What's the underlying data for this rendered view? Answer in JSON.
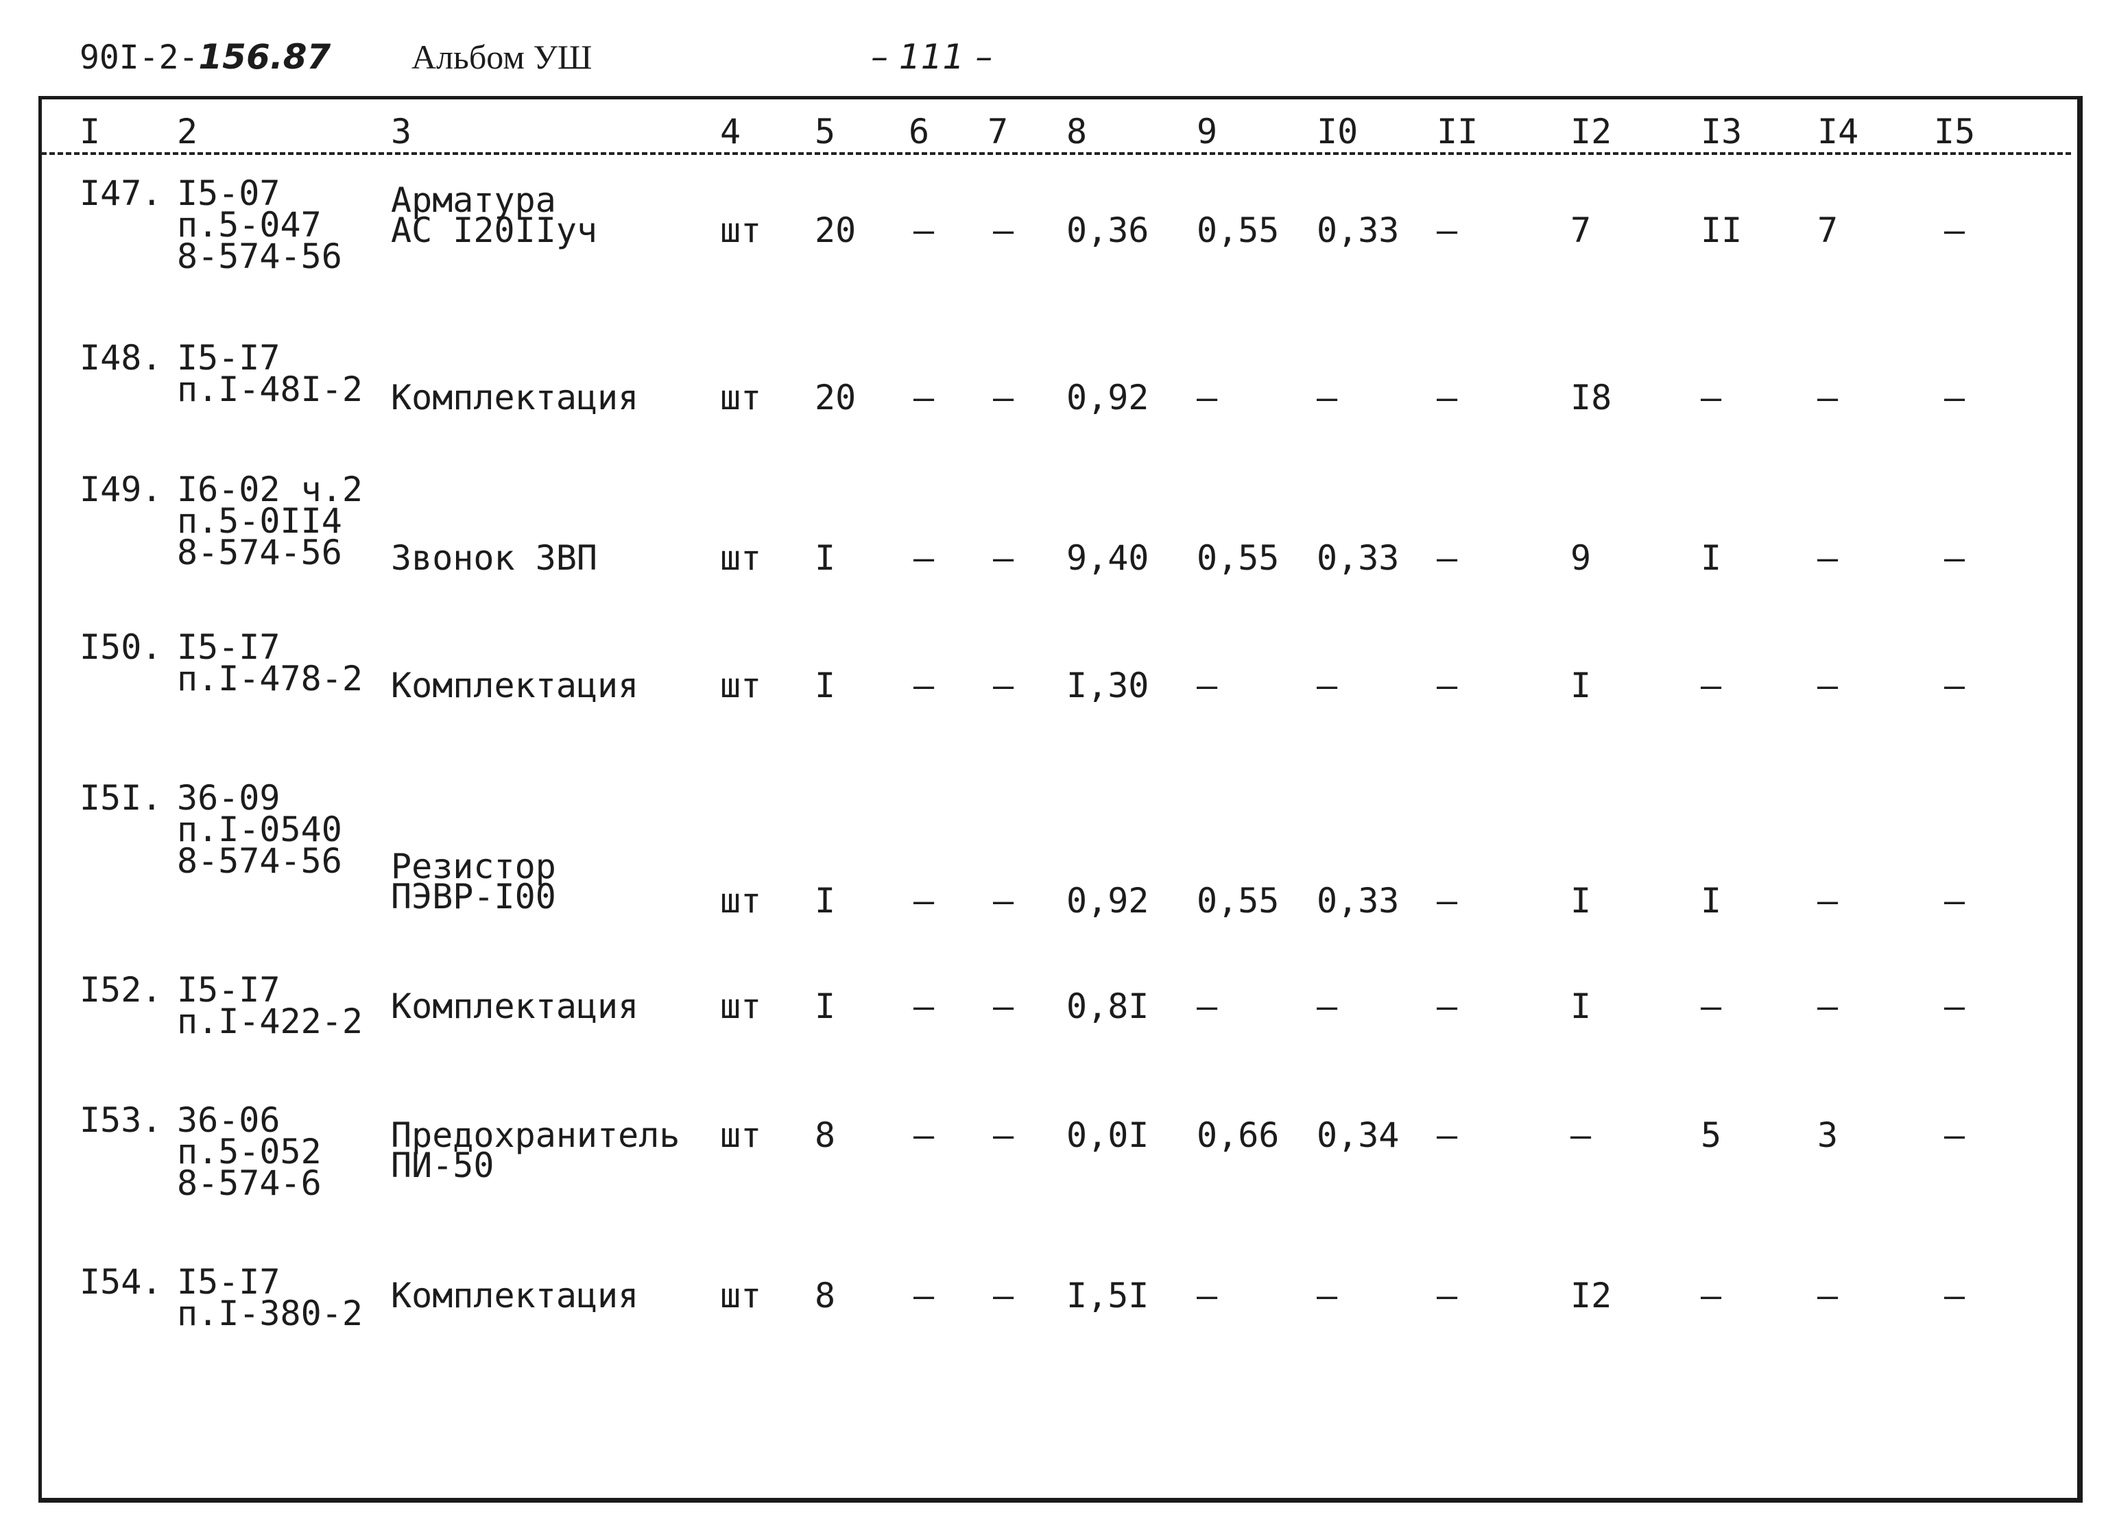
{
  "header": {
    "doc_code_prefix": "90I-2-",
    "doc_code_hand": "156.87",
    "album": "Альбом УШ",
    "page_number": "– 111 –"
  },
  "columns": [
    "I",
    "2",
    "3",
    "4",
    "5",
    "6",
    "7",
    "8",
    "9",
    "I0",
    "II",
    "I2",
    "I3",
    "I4",
    "I5"
  ],
  "rows": [
    {
      "num": "I47.",
      "ref": [
        "I5-07",
        "п.5-047",
        "8-574-56"
      ],
      "name": [
        "Арматура",
        "АС I20IIуч"
      ],
      "unit": "шт",
      "qty": "20",
      "c6": "–",
      "c7": "–",
      "c8": "0,36",
      "c9": "0,55",
      "c10": "0,33",
      "c11": "–",
      "c12": "7",
      "c13": "II",
      "c14": "7",
      "c15": "–"
    },
    {
      "num": "I48.",
      "ref": [
        "I5-I7",
        "п.I-48I-2"
      ],
      "name": [
        "Комплектация"
      ],
      "unit": "шт",
      "qty": "20",
      "c6": "–",
      "c7": "–",
      "c8": "0,92",
      "c9": "–",
      "c10": "–",
      "c11": "–",
      "c12": "I8",
      "c13": "–",
      "c14": "–",
      "c15": "–"
    },
    {
      "num": "I49.",
      "ref": [
        "I6-02 ч.2",
        "п.5-0II4",
        "8-574-56"
      ],
      "name": [
        "Звонок ЗВП"
      ],
      "unit": "шт",
      "qty": "I",
      "c6": "–",
      "c7": "–",
      "c8": "9,40",
      "c9": "0,55",
      "c10": "0,33",
      "c11": "–",
      "c12": "9",
      "c13": "I",
      "c14": "–",
      "c15": "–"
    },
    {
      "num": "I50.",
      "ref": [
        "I5-I7",
        "п.I-478-2"
      ],
      "name": [
        "Комплектация"
      ],
      "unit": "шт",
      "qty": "I",
      "c6": "–",
      "c7": "–",
      "c8": "I,30",
      "c9": "–",
      "c10": "–",
      "c11": "–",
      "c12": "I",
      "c13": "–",
      "c14": "–",
      "c15": "–"
    },
    {
      "num": "I5I.",
      "ref": [
        "36-09",
        "п.I-0540",
        "8-574-56"
      ],
      "name": [
        "Резистор",
        "ПЭВР-I00"
      ],
      "unit": "шт",
      "qty": "I",
      "c6": "–",
      "c7": "–",
      "c8": "0,92",
      "c9": "0,55",
      "c10": "0,33",
      "c11": "–",
      "c12": "I",
      "c13": "I",
      "c14": "–",
      "c15": "–"
    },
    {
      "num": "I52.",
      "ref": [
        "I5-I7",
        "п.I-422-2"
      ],
      "name": [
        "Комплектация"
      ],
      "unit": "шт",
      "qty": "I",
      "c6": "–",
      "c7": "–",
      "c8": "0,8I",
      "c9": "–",
      "c10": "–",
      "c11": "–",
      "c12": "I",
      "c13": "–",
      "c14": "–",
      "c15": "–"
    },
    {
      "num": "I53.",
      "ref": [
        "36-06",
        "п.5-052",
        "8-574-6"
      ],
      "name": [
        "Предохранитель",
        "ПИ-50"
      ],
      "unit": "шт",
      "qty": "8",
      "c6": "–",
      "c7": "–",
      "c8": "0,0I",
      "c9": "0,66",
      "c10": "0,34",
      "c11": "–",
      "c12": "–",
      "c13": "5",
      "c14": "3",
      "c15": "–"
    },
    {
      "num": "I54.",
      "ref": [
        "I5-I7",
        "п.I-380-2"
      ],
      "name": [
        "Комплектация"
      ],
      "unit": "шт",
      "qty": "8",
      "c6": "–",
      "c7": "–",
      "c8": "I,5I",
      "c9": "–",
      "c10": "–",
      "c11": "–",
      "c12": "I2",
      "c13": "–",
      "c14": "–",
      "c15": "–"
    }
  ]
}
